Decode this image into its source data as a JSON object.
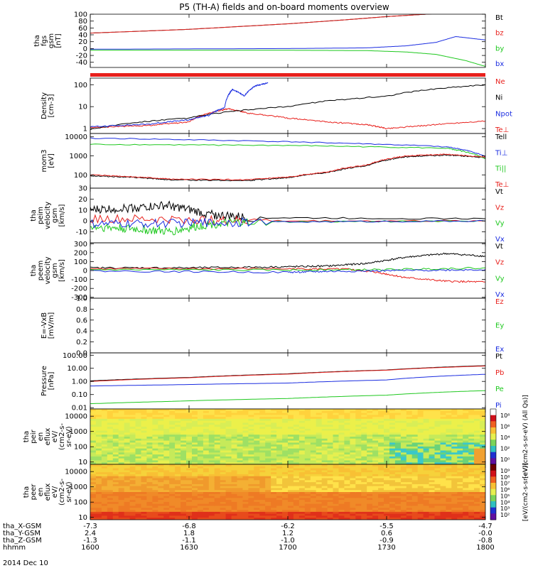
{
  "chart_data": {
    "type": "line",
    "title": "P5 (TH-A) fields and on-board moments overview",
    "date_label": "2014 Dec 10",
    "x_range": [
      1600,
      1800
    ],
    "x_ticks": [
      "1600",
      "1630",
      "1700",
      "1730",
      "1800"
    ],
    "ephemeris": [
      {
        "label": "tha_X-GSM",
        "values": [
          "-7.3",
          "-6.8",
          "-6.2",
          "-5.5",
          "-4.7"
        ]
      },
      {
        "label": "tha_Y-GSM",
        "values": [
          "2.4",
          "1.8",
          "1.2",
          "0.6",
          "-0.0"
        ]
      },
      {
        "label": "tha_Z-GSM",
        "values": [
          "-1.3",
          "-1.1",
          "-1.0",
          "-0.9",
          "-0.8"
        ]
      },
      {
        "label": "hhmm",
        "values": [
          "1600",
          "1630",
          "1700",
          "1730",
          "1800"
        ]
      }
    ],
    "panels": [
      {
        "id": "fgs",
        "type": "line",
        "ylabel": [
          "tha",
          "fgs",
          "gsm",
          "[nT]"
        ],
        "scale": "linear",
        "ylim": [
          -55,
          100
        ],
        "ticks": [
          "100",
          "80",
          "60",
          "40",
          "20",
          "0",
          "-20",
          "-40"
        ],
        "tick_values": [
          100,
          80,
          60,
          40,
          20,
          0,
          -20,
          -40
        ],
        "series": [
          {
            "name": "Bt",
            "color": "#000000",
            "x": [
              1600,
              1650,
              1700,
              1730,
              1750,
              1770,
              1800
            ],
            "y": [
              45,
              56,
              72,
              84,
              93,
              100,
              110
            ]
          },
          {
            "name": "bz",
            "color": "#e8201c",
            "x": [
              1600,
              1650,
              1700,
              1730,
              1750,
              1770,
              1800
            ],
            "y": [
              45,
              56,
              72,
              84,
              93,
              100,
              110
            ]
          },
          {
            "name": "by",
            "color": "#1ec81e",
            "x": [
              1600,
              1700,
              1740,
              1760,
              1775,
              1790,
              1800
            ],
            "y": [
              -5,
              -5,
              -6,
              -10,
              -17,
              -35,
              -52
            ]
          },
          {
            "name": "bx",
            "color": "#1a2ce0",
            "x": [
              1600,
              1700,
              1740,
              1760,
              1775,
              1785,
              1800
            ],
            "y": [
              -2,
              0,
              2,
              8,
              18,
              35,
              25
            ]
          }
        ]
      },
      {
        "id": "density",
        "type": "line",
        "ylabel": [
          "Density",
          "[cm-3]"
        ],
        "scale": "log",
        "ylim": [
          0.6,
          200
        ],
        "ticks": [
          "100",
          "10",
          "1"
        ],
        "tick_values": [
          100,
          10,
          1
        ],
        "series": [
          {
            "name": "Ne",
            "color": "#e8201c",
            "x": [
              1600,
              1630,
              1650,
              1660,
              1670,
              1680,
              1700,
              1720,
              1740,
              1750,
              1770,
              1800
            ],
            "y": [
              1.1,
              1.4,
              2.0,
              5,
              8,
              5,
              3,
              2,
              1.5,
              1.0,
              1.4,
              2.2
            ]
          },
          {
            "name": "Ni",
            "color": "#000000",
            "x": [
              1600,
              1650,
              1700,
              1750,
              1800
            ],
            "y": [
              0.9,
              3,
              10,
              30,
              100
            ]
          },
          {
            "name": "Npot",
            "color": "#1a2ce0",
            "x": [
              1600,
              1630,
              1650,
              1660,
              1668,
              1672,
              1678,
              1684,
              1690
            ],
            "y": [
              1.2,
              1.6,
              2.5,
              4,
              9,
              60,
              30,
              90,
              120
            ]
          },
          {
            "name": "Te⊥",
            "color": "#e8201c",
            "x": [],
            "y": []
          }
        ]
      },
      {
        "id": "temperature",
        "type": "line",
        "ylabel": [
          "mom3",
          "[eV]"
        ],
        "scale": "log",
        "ylim": [
          20,
          15000
        ],
        "ticks": [
          "10000",
          "1000",
          "100"
        ],
        "tick_values": [
          10000,
          1000,
          100
        ],
        "series": [
          {
            "name": "Tell",
            "color": "#000000",
            "x": [
              1600,
              1620,
              1640,
              1680,
              1700,
              1720,
              1740,
              1760,
              1780,
              1800
            ],
            "y": [
              90,
              75,
              55,
              50,
              70,
              130,
              300,
              900,
              1100,
              800
            ]
          },
          {
            "name": "Ti⊥",
            "color": "#1a2ce0",
            "x": [
              1600,
              1700,
              1780,
              1800
            ],
            "y": [
              8500,
              5500,
              3000,
              900
            ]
          },
          {
            "name": "Ti||",
            "color": "#1ec81e",
            "x": [
              1600,
              1700,
              1780,
              1800
            ],
            "y": [
              4000,
              3500,
              2500,
              700
            ]
          },
          {
            "name": "Te⊥",
            "color": "#e8201c",
            "x": [
              1600,
              1620,
              1640,
              1680,
              1700,
              1720,
              1740,
              1760,
              1780,
              1800
            ],
            "y": [
              100,
              80,
              60,
              55,
              75,
              140,
              330,
              1000,
              1200,
              850
            ]
          }
        ]
      },
      {
        "id": "peim-velocity",
        "type": "line",
        "ylabel": [
          "tha",
          "peim",
          "velocity",
          "gsm",
          "[km/s]"
        ],
        "scale": "linear",
        "ylim": [
          -20,
          30
        ],
        "ticks": [
          "30",
          "20",
          "10",
          "0",
          "-10"
        ],
        "tick_values": [
          30,
          20,
          10,
          0,
          -10
        ],
        "series": [
          {
            "name": "Vt",
            "color": "#000000",
            "x": [
              1600,
              1620,
              1640,
              1660,
              1680,
              1800
            ],
            "y": [
              10,
              12,
              14,
              6,
              3,
              2
            ]
          },
          {
            "name": "Vz",
            "color": "#e8201c",
            "x": [
              1600,
              1650,
              1680,
              1800
            ],
            "y": [
              2,
              1,
              0,
              0
            ]
          },
          {
            "name": "Vy",
            "color": "#1ec81e",
            "x": [
              1600,
              1620,
              1640,
              1660,
              1680,
              1800
            ],
            "y": [
              -5,
              -7,
              -10,
              -3,
              -1,
              0
            ]
          },
          {
            "name": "Vx",
            "color": "#1a2ce0",
            "x": [
              1600,
              1640,
              1680,
              1800
            ],
            "y": [
              -3,
              -2,
              -1,
              0
            ]
          }
        ]
      },
      {
        "id": "peem-velocity",
        "type": "line",
        "ylabel": [
          "tha",
          "peem",
          "velocity",
          "gsm",
          "[km/s]"
        ],
        "scale": "linear",
        "ylim": [
          -310,
          310
        ],
        "ticks": [
          "300",
          "200",
          "100",
          "0",
          "-100",
          "-200",
          "-300"
        ],
        "tick_values": [
          300,
          200,
          100,
          0,
          -100,
          -200,
          -300
        ],
        "series": [
          {
            "name": "Vt",
            "color": "#000000",
            "x": [
              1600,
              1650,
              1695,
              1720,
              1740,
              1760,
              1780,
              1800
            ],
            "y": [
              30,
              30,
              40,
              50,
              80,
              150,
              190,
              160
            ]
          },
          {
            "name": "Vz",
            "color": "#e8201c",
            "x": [
              1600,
              1700,
              1730,
              1745,
              1760,
              1780,
              1800
            ],
            "y": [
              20,
              20,
              15,
              -20,
              -80,
              -120,
              -130
            ]
          },
          {
            "name": "Vy",
            "color": "#1ec81e",
            "x": [
              1600,
              1700,
              1750,
              1800
            ],
            "y": [
              10,
              5,
              10,
              30
            ]
          },
          {
            "name": "Vx",
            "color": "#1a2ce0",
            "x": [
              1600,
              1700,
              1720,
              1760,
              1800
            ],
            "y": [
              -5,
              -20,
              -10,
              0,
              10
            ]
          }
        ]
      },
      {
        "id": "efield",
        "type": "line",
        "ylabel": [
          "E=-VxB",
          "[mV/m]"
        ],
        "scale": "linear",
        "ylim": [
          0,
          1
        ],
        "ticks": [
          "1.0",
          "0.8",
          "0.6",
          "0.4",
          "0.2",
          "0.0"
        ],
        "tick_values": [
          1.0,
          0.8,
          0.6,
          0.4,
          0.2,
          0.0
        ],
        "series": [
          {
            "name": "Ez",
            "color": "#e8201c",
            "x": [],
            "y": []
          },
          {
            "name": "Ey",
            "color": "#1ec81e",
            "x": [],
            "y": []
          },
          {
            "name": "Ex",
            "color": "#1a2ce0",
            "x": [],
            "y": []
          }
        ]
      },
      {
        "id": "pressure",
        "type": "line",
        "ylabel": [
          "Pressure",
          "[nPa]"
        ],
        "scale": "log",
        "ylim": [
          0.008,
          150
        ],
        "ticks": [
          "100.00",
          "10.00",
          "1.00",
          "0.10",
          "0.01"
        ],
        "tick_values": [
          100,
          10,
          1,
          0.1,
          0.01
        ],
        "series": [
          {
            "name": "Pt",
            "color": "#000000",
            "x": [
              1600,
              1650,
              1700,
              1750,
              1800
            ],
            "y": [
              1.1,
              2.0,
              3.8,
              7.5,
              16
            ]
          },
          {
            "name": "Pb",
            "color": "#e8201c",
            "x": [
              1600,
              1650,
              1700,
              1750,
              1800
            ],
            "y": [
              1.0,
              1.9,
              3.6,
              7.2,
              15
            ]
          },
          {
            "name": "Pe",
            "color": "#1ec81e",
            "x": [
              1600,
              1640,
              1700,
              1750,
              1800
            ],
            "y": [
              0.02,
              0.03,
              0.05,
              0.09,
              0.2
            ]
          },
          {
            "name": "Pi",
            "color": "#1a2ce0",
            "x": [
              1600,
              1640,
              1700,
              1750,
              1800
            ],
            "y": [
              0.45,
              0.55,
              0.75,
              1.3,
              3.5
            ]
          }
        ]
      },
      {
        "id": "peir-eflux",
        "type": "heatmap",
        "ylabel": [
          "tha",
          "peir",
          "en",
          "eflux",
          "eV/",
          "(cm2-s-",
          "sr-eV)"
        ],
        "scale": "log",
        "ylim": [
          7,
          30000
        ],
        "ticks": [
          "10000",
          "1000",
          "100",
          "10"
        ],
        "tick_values": [
          10000,
          1000,
          100,
          10
        ],
        "colorbar_label": "[eV/(cm2-s-sr-eV) (All Qs)]",
        "colorbar_ticks": [
          "10⁸",
          "10⁶",
          "10⁴",
          "10²",
          "10⁰"
        ]
      },
      {
        "id": "peer-eflux",
        "type": "heatmap",
        "ylabel": [
          "tha",
          "peer",
          "en",
          "eflux",
          "eV/",
          "(cm2-s-",
          "sr-eV)"
        ],
        "scale": "log",
        "ylim": [
          7,
          30000
        ],
        "ticks": [
          "10000",
          "1000",
          "100",
          "10"
        ],
        "tick_values": [
          10000,
          1000,
          100,
          10
        ],
        "colorbar_label": "[eV/(cm2-s-sr-eV)]",
        "colorbar_ticks": [
          "10⁹",
          "10⁸",
          "10⁷",
          "10⁶",
          "10⁵",
          "10⁴",
          "10³",
          "10²"
        ]
      }
    ],
    "bz_bar_color": "#e8201c",
    "colors": {
      "black": "#000000",
      "red": "#e8201c",
      "green": "#1ec81e",
      "blue": "#1a2ce0"
    }
  }
}
